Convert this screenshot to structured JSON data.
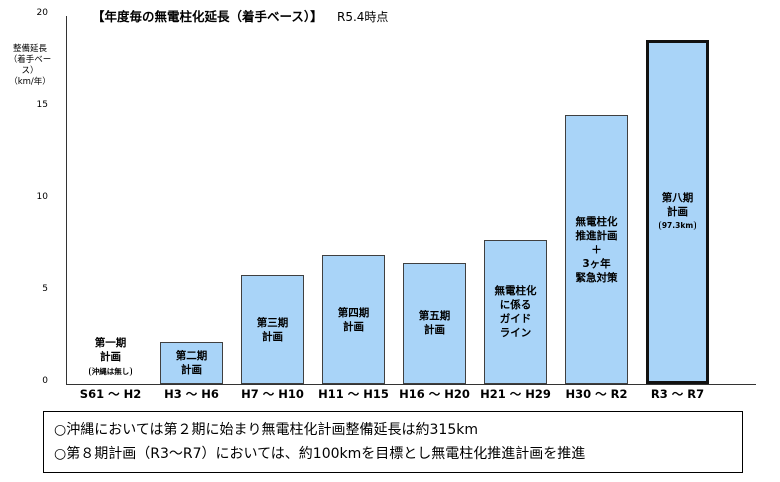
{
  "chart_data": {
    "type": "bar",
    "title": "【年度毎の無電柱化延長（着手ベース）】",
    "as_of": "R5.4時点",
    "ylabel": "整備延長\n（着手ベース）\n（km/年）",
    "ylim": [
      0,
      20
    ],
    "yticks": [
      "0",
      "5",
      "10",
      "15",
      "20"
    ],
    "categories": [
      "S61 ～ H2",
      "H3 ～ H6",
      "H7 ～ H10",
      "H11 ～ H15",
      "H16 ～ H20",
      "H21 ～ H29",
      "H30 ～ R2",
      "R3 ～ R7"
    ],
    "values": [
      0,
      2.3,
      5.9,
      7.0,
      6.6,
      7.8,
      14.6,
      18.7
    ],
    "bar_labels": [
      "第一期\n計画",
      "第二期\n計画",
      "第三期\n計画",
      "第四期\n計画",
      "第五期\n計画",
      "無電柱化\nに係る\nガイド\nライン",
      "無電柱化\n推進計画\n＋\n3ヶ年\n緊急対策",
      "第八期\n計画"
    ],
    "bar_notes": [
      "沖縄は無し",
      "",
      "",
      "",
      "",
      "",
      "",
      "97.3km"
    ],
    "highlight_index": 7,
    "bar_color": "#a9d4f8",
    "grid": false
  },
  "notes": {
    "line1": "○沖縄においては第２期に始まり無電柱化計画整備延長は約315km",
    "line2": "○第８期計画（R3～R7）においては、約100kmを目標とし無電柱化推進計画を推進"
  }
}
